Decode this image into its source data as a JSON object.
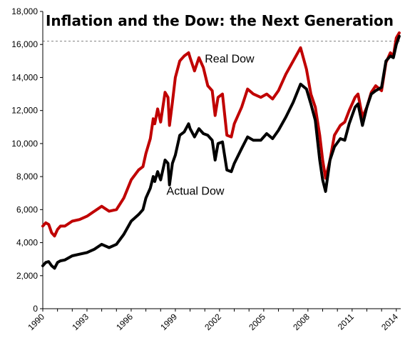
{
  "chart_data": {
    "type": "line",
    "title": "Inflation and the Dow: the Next Generation",
    "xlabel": "",
    "ylabel": "",
    "xlim": [
      1990,
      2014.3
    ],
    "ylim": [
      0,
      18000
    ],
    "x_ticks": [
      "1990",
      "1993",
      "1996",
      "1999",
      "2002",
      "2005",
      "2008",
      "2011",
      "2014"
    ],
    "y_ticks": [
      "0",
      "2,000",
      "4,000",
      "6,000",
      "8,000",
      "10,000",
      "12,000",
      "14,000",
      "16,000",
      "18,000"
    ],
    "grid": false,
    "reference_line": 16200,
    "series": [
      {
        "name": "Real Dow",
        "color": "#C00000",
        "x": [
          1990.0,
          1990.2,
          1990.4,
          1990.6,
          1990.8,
          1991.0,
          1991.2,
          1991.5,
          1992.0,
          1992.5,
          1993.0,
          1993.5,
          1994.0,
          1994.5,
          1995.0,
          1995.5,
          1996.0,
          1996.5,
          1996.8,
          1997.0,
          1997.3,
          1997.5,
          1997.6,
          1997.8,
          1998.0,
          1998.3,
          1998.5,
          1998.6,
          1998.8,
          1999.0,
          1999.3,
          1999.6,
          1999.9,
          2000.0,
          2000.3,
          2000.6,
          2000.9,
          2001.2,
          2001.5,
          2001.7,
          2001.9,
          2002.2,
          2002.5,
          2002.8,
          2003.0,
          2003.5,
          2003.9,
          2004.3,
          2004.8,
          2005.2,
          2005.6,
          2006.0,
          2006.5,
          2007.0,
          2007.5,
          2007.9,
          2008.2,
          2008.5,
          2008.8,
          2009.0,
          2009.2,
          2009.5,
          2009.8,
          2010.2,
          2010.5,
          2010.8,
          2011.2,
          2011.4,
          2011.7,
          2012.0,
          2012.3,
          2012.6,
          2013.0,
          2013.3,
          2013.6,
          2013.8,
          2014.0,
          2014.2
        ],
        "values": [
          5000,
          5200,
          5100,
          4600,
          4400,
          4800,
          5000,
          5000,
          5300,
          5400,
          5600,
          5900,
          6200,
          5900,
          6000,
          6700,
          7800,
          8400,
          8600,
          9400,
          10300,
          11500,
          11200,
          12100,
          11300,
          13100,
          12800,
          11100,
          12500,
          14000,
          15000,
          15300,
          15500,
          15200,
          14400,
          15200,
          14600,
          13500,
          13200,
          11700,
          12800,
          13000,
          10500,
          10400,
          11200,
          12200,
          13300,
          13000,
          12800,
          13000,
          12700,
          13200,
          14200,
          15000,
          15800,
          14500,
          13000,
          12200,
          10500,
          9000,
          7900,
          9000,
          10500,
          11100,
          11300,
          12000,
          12800,
          13000,
          11600,
          12200,
          13100,
          13500,
          13200,
          14900,
          15500,
          15300,
          16400,
          16700
        ]
      },
      {
        "name": "Actual Dow",
        "color": "#000000",
        "x": [
          1990.0,
          1990.2,
          1990.4,
          1990.6,
          1990.8,
          1991.0,
          1991.2,
          1991.5,
          1992.0,
          1992.5,
          1993.0,
          1993.5,
          1994.0,
          1994.5,
          1995.0,
          1995.5,
          1996.0,
          1996.5,
          1996.8,
          1997.0,
          1997.3,
          1997.5,
          1997.6,
          1997.8,
          1998.0,
          1998.3,
          1998.5,
          1998.6,
          1998.8,
          1999.0,
          1999.3,
          1999.6,
          1999.9,
          2000.0,
          2000.3,
          2000.6,
          2000.9,
          2001.2,
          2001.5,
          2001.7,
          2001.9,
          2002.2,
          2002.5,
          2002.8,
          2003.0,
          2003.5,
          2003.9,
          2004.3,
          2004.8,
          2005.2,
          2005.6,
          2006.0,
          2006.5,
          2007.0,
          2007.5,
          2007.9,
          2008.2,
          2008.5,
          2008.8,
          2009.0,
          2009.2,
          2009.5,
          2009.8,
          2010.2,
          2010.5,
          2010.8,
          2011.2,
          2011.4,
          2011.7,
          2012.0,
          2012.3,
          2012.6,
          2013.0,
          2013.3,
          2013.6,
          2013.8,
          2014.0,
          2014.2
        ],
        "values": [
          2600,
          2800,
          2850,
          2600,
          2450,
          2800,
          2900,
          2950,
          3200,
          3300,
          3400,
          3600,
          3900,
          3700,
          3900,
          4500,
          5300,
          5700,
          6000,
          6700,
          7300,
          8000,
          7700,
          8300,
          7800,
          9000,
          8800,
          7500,
          8800,
          9300,
          10500,
          10700,
          11200,
          10900,
          10400,
          10900,
          10600,
          10500,
          10200,
          9000,
          10000,
          10100,
          8400,
          8300,
          8800,
          9700,
          10400,
          10200,
          10200,
          10600,
          10300,
          10800,
          11600,
          12500,
          13600,
          13300,
          12400,
          11400,
          9000,
          7800,
          7100,
          9000,
          9800,
          10300,
          10200,
          11200,
          12200,
          12400,
          11100,
          12200,
          13000,
          13200,
          13400,
          15000,
          15300,
          15200,
          16000,
          16500
        ]
      }
    ],
    "annotations": [
      {
        "text": "Real Dow",
        "x": 2001.0,
        "y": 14900
      },
      {
        "text": "Actual Dow",
        "x": 1998.4,
        "y": 6900
      }
    ]
  }
}
